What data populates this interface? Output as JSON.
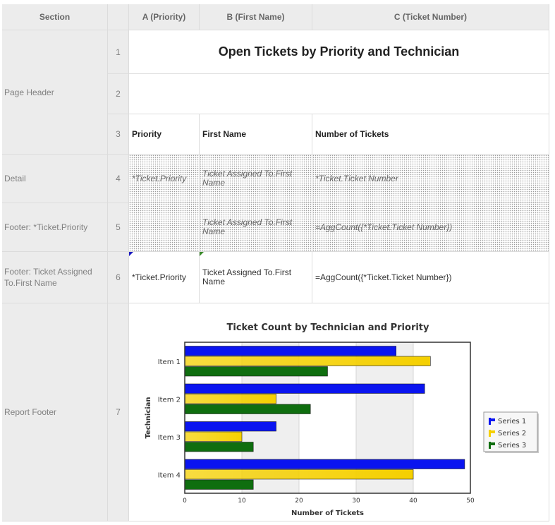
{
  "columns": {
    "section": "Section",
    "a": "A (Priority)",
    "b": "B (First Name)",
    "c": "C (Ticket Number)"
  },
  "sections": {
    "page_header": "Page Header",
    "detail": "Detail",
    "footer_priority": "Footer: *Ticket.Priority",
    "footer_tech": "Footer: Ticket Assigned To.First Name",
    "report_footer": "Report Footer"
  },
  "rows": [
    "1",
    "2",
    "3",
    "4",
    "5",
    "6",
    "7"
  ],
  "row1": {
    "title": "Open Tickets by Priority and Technician"
  },
  "row3": {
    "a": "Priority",
    "b": "First Name",
    "c": "Number of Tickets"
  },
  "row4": {
    "a": "*Ticket.Priority",
    "b": "Ticket Assigned To.First Name",
    "c": "*Ticket.Ticket Number"
  },
  "row5": {
    "a": "",
    "b": "Ticket Assigned To.First Name",
    "c": "=AggCount({*Ticket.Ticket Number})"
  },
  "row6": {
    "a": "*Ticket.Priority",
    "b": "Ticket Assigned To.First Name",
    "c": "=AggCount({*Ticket.Ticket Number})"
  },
  "chart_data": {
    "type": "bar",
    "orientation": "horizontal",
    "title": "Ticket Count by Technician and Priority",
    "xlabel": "Number of Tickets",
    "ylabel": "Technician",
    "categories": [
      "Item 1",
      "Item 2",
      "Item 3",
      "Item 4"
    ],
    "series": [
      {
        "name": "Series 1",
        "values": [
          37,
          42,
          16,
          49
        ],
        "color": "#0a14f0"
      },
      {
        "name": "Series 2",
        "values": [
          43,
          16,
          10,
          40
        ],
        "color": "#f5d000"
      },
      {
        "name": "Series 3",
        "values": [
          25,
          22,
          12,
          12
        ],
        "color": "#0f6e0f"
      }
    ],
    "xlim": [
      0,
      50
    ],
    "ticks": [
      "0",
      "10",
      "20",
      "30",
      "40",
      "50"
    ],
    "legend": "right",
    "grid": "alternating bands"
  }
}
